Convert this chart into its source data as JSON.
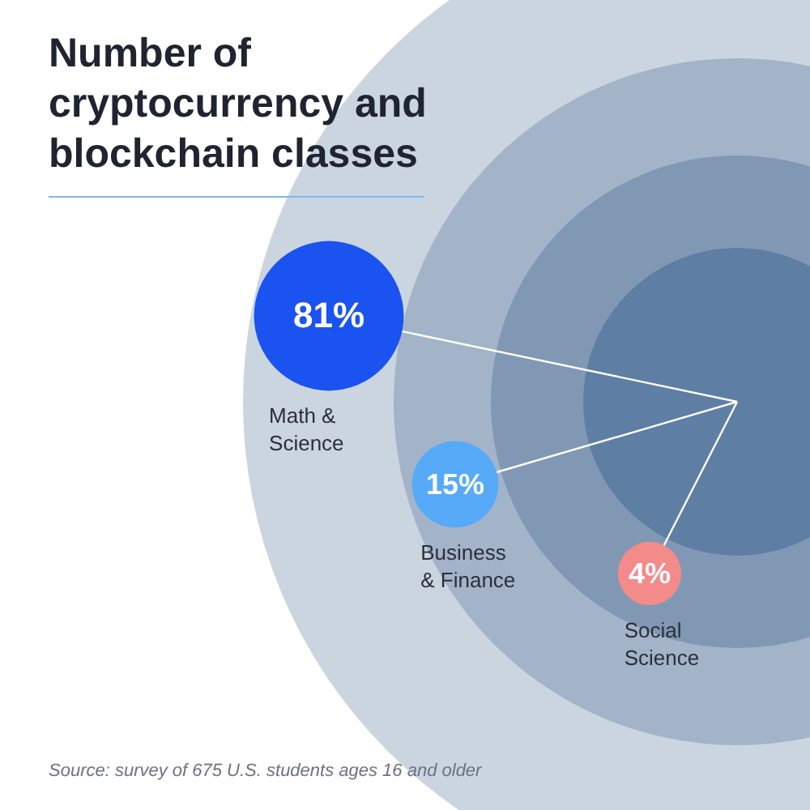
{
  "chart_data": {
    "type": "other",
    "title": "Number of cryptocurrency and blockchain classes",
    "categories": [
      "Math & Science",
      "Business & Finance",
      "Social Science"
    ],
    "values": [
      81,
      15,
      4
    ],
    "value_labels": [
      "81%",
      "15%",
      "4%"
    ],
    "colors": [
      "#1a53f0",
      "#57aaf8",
      "#f28b8a"
    ],
    "annotations": [
      "Source: survey of 675 U.S. students ages 16 and older"
    ]
  }
}
